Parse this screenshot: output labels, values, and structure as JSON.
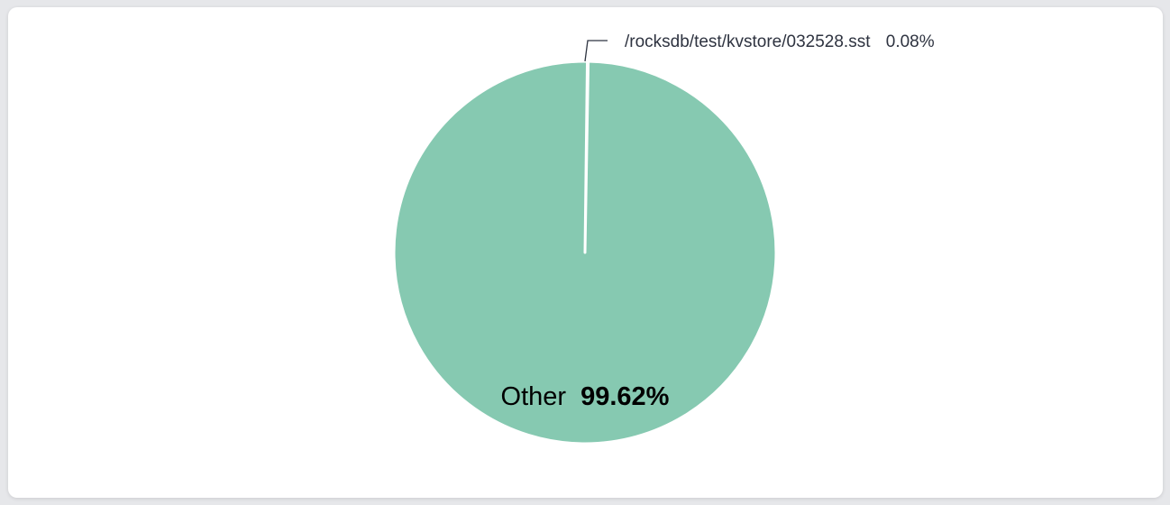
{
  "chart_data": {
    "type": "pie",
    "slices": [
      {
        "name": "/rocksdb/test/kvstore/032528.sst",
        "value": 0.08,
        "label": "0.08%",
        "color": "#b8a7d8"
      },
      {
        "name": "Other",
        "value": 99.62,
        "label": "99.62%",
        "color": "#86c9b1"
      }
    ],
    "slice_border_color": "#ffffff",
    "leader_line_color": "#2e3340"
  }
}
